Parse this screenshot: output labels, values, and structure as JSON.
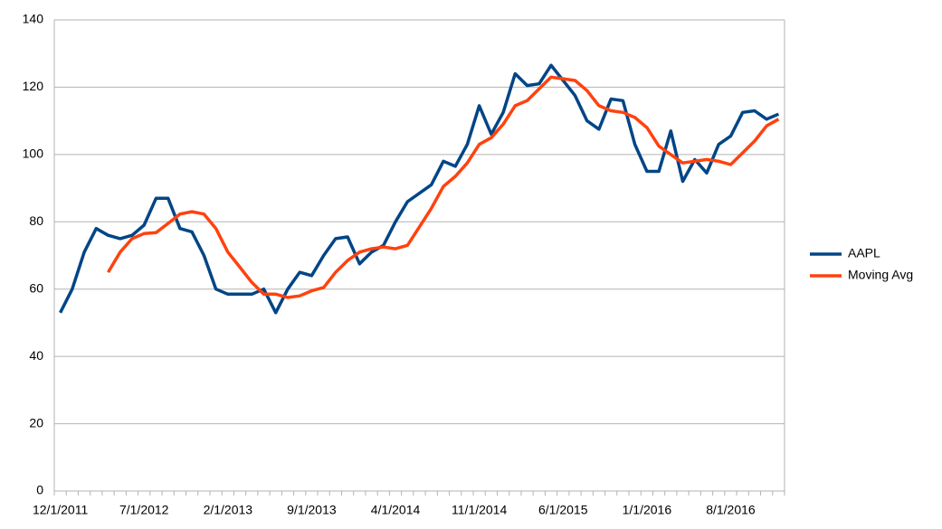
{
  "chart_data": {
    "type": "line",
    "categories": [
      "12/1/2011",
      null,
      null,
      null,
      null,
      null,
      null,
      "7/1/2012",
      null,
      null,
      null,
      null,
      null,
      null,
      "2/1/2013",
      null,
      null,
      null,
      null,
      null,
      null,
      "9/1/2013",
      null,
      null,
      null,
      null,
      null,
      null,
      "4/1/2014",
      null,
      null,
      null,
      null,
      null,
      null,
      "11/1/2014",
      null,
      null,
      null,
      null,
      null,
      null,
      "6/1/2015",
      null,
      null,
      null,
      null,
      null,
      null,
      "1/1/2016",
      null,
      null,
      null,
      null,
      null,
      null,
      "8/1/2016",
      null,
      null,
      null,
      null
    ],
    "series": [
      {
        "name": "AAPL",
        "color": "#004586",
        "values": [
          53,
          60,
          71,
          78,
          76,
          75,
          76,
          79,
          87,
          87,
          78,
          77,
          70,
          60,
          58.5,
          58.5,
          58.5,
          60,
          53,
          60,
          65,
          64,
          70,
          75,
          75.5,
          67.5,
          71,
          73,
          80,
          86,
          88.5,
          91,
          98,
          96.5,
          103,
          114.5,
          106,
          112.5,
          124,
          120.5,
          121,
          126.5,
          122,
          117.5,
          110,
          107.5,
          116.5,
          116,
          103,
          95,
          95,
          107,
          92,
          98.5,
          94.5,
          103,
          105.5,
          112.5,
          113,
          110.5,
          112
        ]
      },
      {
        "name": "Moving Avg",
        "color": "#ff420e",
        "values": [
          null,
          null,
          null,
          null,
          65,
          71,
          75,
          76.5,
          76.8,
          79.5,
          82.3,
          83,
          82.3,
          78,
          71,
          66.5,
          62,
          58.5,
          58.5,
          57.5,
          58,
          59.5,
          60.5,
          65,
          68.5,
          71,
          72,
          72.5,
          72,
          73,
          78.5,
          84,
          90.5,
          93.5,
          97.5,
          103,
          105,
          109,
          114.5,
          116,
          119.5,
          123,
          122.5,
          122,
          119,
          114.5,
          113,
          112.5,
          111,
          108,
          102.5,
          100,
          97.5,
          98,
          98.5,
          98,
          97,
          100.5,
          104,
          108.5,
          110.5
        ]
      }
    ],
    "ylim": [
      0,
      140
    ],
    "yticks": [
      0,
      20,
      40,
      60,
      80,
      100,
      120,
      140
    ],
    "grid": true,
    "legend": "right"
  }
}
